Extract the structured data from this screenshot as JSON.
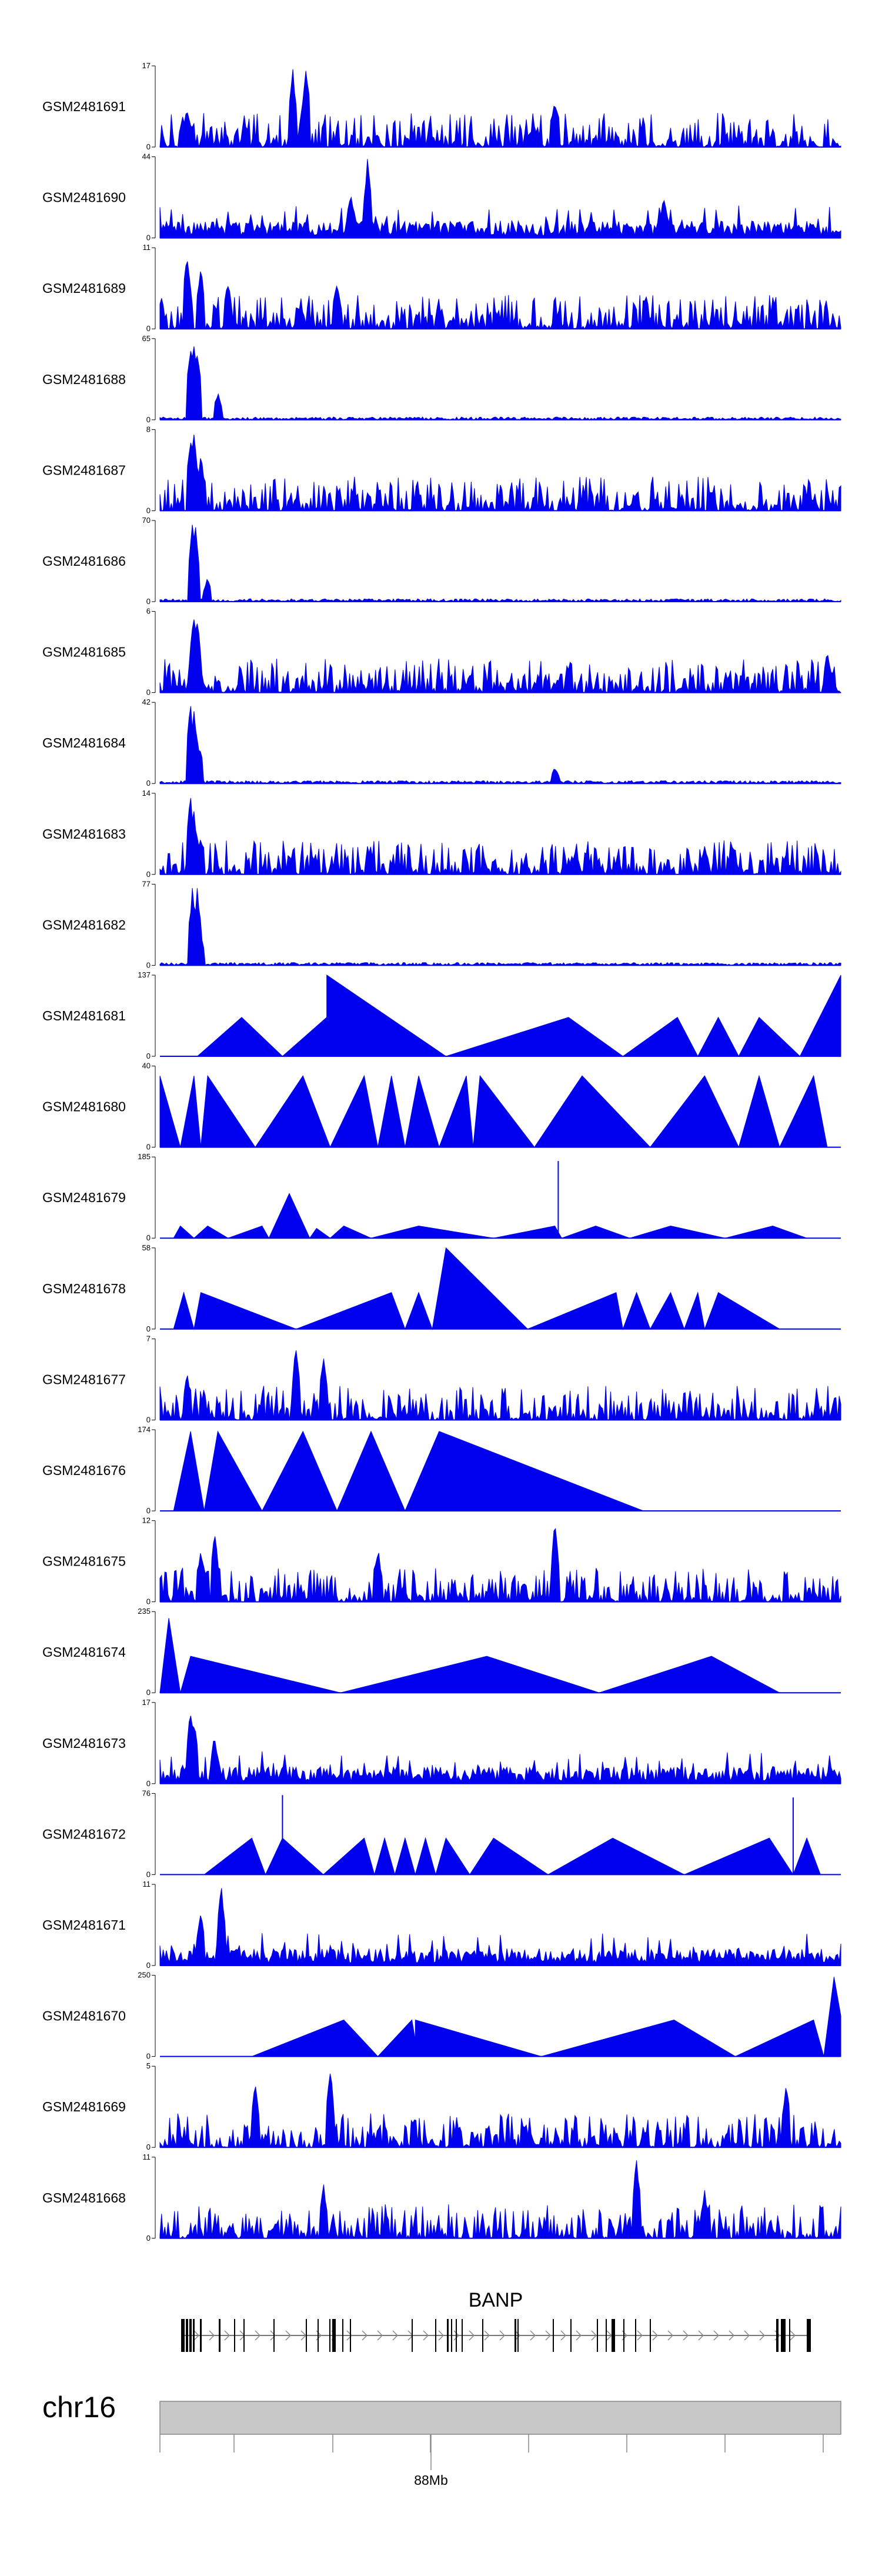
{
  "chart_data": {
    "type": "area",
    "title": "",
    "chromosome": "chr16",
    "xlabel": "",
    "axis_ticks": [
      {
        "label": "88Mb",
        "major": true
      }
    ],
    "gene": {
      "name": "BANP"
    },
    "series_color": "#0000EE",
    "tracks": [
      {
        "name": "GSM2481691",
        "ymin": "0",
        "ymax": "17",
        "pattern": "noise",
        "seed": 91,
        "peaks": [
          [
            0.195,
            1.0
          ],
          [
            0.215,
            1.0
          ],
          [
            0.58,
            0.6
          ],
          [
            0.04,
            0.5
          ]
        ]
      },
      {
        "name": "GSM2481690",
        "ymin": "0",
        "ymax": "44",
        "pattern": "noise-tri",
        "seed": 90,
        "peaks": [
          [
            0.305,
            1.0
          ],
          [
            0.28,
            0.6
          ],
          [
            0.74,
            0.5
          ]
        ]
      },
      {
        "name": "GSM2481689",
        "ymin": "0",
        "ymax": "11",
        "pattern": "noise",
        "seed": 89,
        "peaks": [
          [
            0.04,
            1.0
          ],
          [
            0.06,
            0.8
          ],
          [
            0.1,
            0.6
          ],
          [
            0.26,
            0.6
          ]
        ]
      },
      {
        "name": "GSM2481688",
        "ymin": "0",
        "ymax": "65",
        "pattern": "focal",
        "seed": 88,
        "peaks": [
          [
            0.045,
            1.0
          ],
          [
            0.05,
            0.95
          ],
          [
            0.055,
            0.9
          ],
          [
            0.085,
            0.35
          ]
        ]
      },
      {
        "name": "GSM2481687",
        "ymin": "0",
        "ymax": "8",
        "pattern": "noise",
        "seed": 87,
        "peaks": [
          [
            0.045,
            1.0
          ],
          [
            0.05,
            0.95
          ],
          [
            0.06,
            0.7
          ]
        ]
      },
      {
        "name": "GSM2481686",
        "ymin": "0",
        "ymax": "70",
        "pattern": "focal",
        "seed": 86,
        "peaks": [
          [
            0.048,
            1.0
          ],
          [
            0.052,
            0.95
          ],
          [
            0.07,
            0.3
          ]
        ]
      },
      {
        "name": "GSM2481685",
        "ymin": "0",
        "ymax": "6",
        "pattern": "noise",
        "seed": 85,
        "peaks": [
          [
            0.05,
            1.0
          ],
          [
            0.055,
            0.95
          ],
          [
            0.98,
            0.5
          ]
        ]
      },
      {
        "name": "GSM2481684",
        "ymin": "0",
        "ymax": "42",
        "pattern": "focal",
        "seed": 84,
        "peaks": [
          [
            0.045,
            1.0
          ],
          [
            0.05,
            0.95
          ],
          [
            0.058,
            0.5
          ],
          [
            0.58,
            0.2
          ]
        ]
      },
      {
        "name": "GSM2481683",
        "ymin": "0",
        "ymax": "14",
        "pattern": "noise",
        "seed": 83,
        "peaks": [
          [
            0.045,
            1.0
          ],
          [
            0.05,
            0.8
          ],
          [
            0.06,
            0.5
          ],
          [
            0.8,
            0.35
          ]
        ]
      },
      {
        "name": "GSM2481682",
        "ymin": "0",
        "ymax": "77",
        "pattern": "focal",
        "seed": 82,
        "peaks": [
          [
            0.048,
            1.0
          ],
          [
            0.055,
            1.0
          ],
          [
            0.06,
            0.4
          ]
        ]
      },
      {
        "name": "GSM2481681",
        "ymin": "0",
        "ymax": "137",
        "pattern": "tri",
        "points": [
          [
            0.055,
            0
          ],
          [
            0.12,
            0.48
          ],
          [
            0.18,
            0
          ],
          [
            0.245,
            0.48
          ],
          [
            0.245,
            1.0
          ],
          [
            0.42,
            0
          ],
          [
            0.6,
            0.48
          ],
          [
            0.68,
            0
          ],
          [
            0.76,
            0.48
          ],
          [
            0.79,
            0
          ],
          [
            0.82,
            0.48
          ],
          [
            0.85,
            0
          ],
          [
            0.88,
            0.48
          ],
          [
            0.94,
            0
          ],
          [
            1.0,
            1.0
          ]
        ]
      },
      {
        "name": "GSM2481680",
        "ymin": "0",
        "ymax": "40",
        "pattern": "tri",
        "points": [
          [
            0.0,
            0
          ],
          [
            0.0,
            0.88
          ],
          [
            0.03,
            0
          ],
          [
            0.05,
            0.88
          ],
          [
            0.06,
            0
          ],
          [
            0.07,
            0.88
          ],
          [
            0.14,
            0
          ],
          [
            0.21,
            0.88
          ],
          [
            0.25,
            0
          ],
          [
            0.3,
            0.88
          ],
          [
            0.32,
            0
          ],
          [
            0.34,
            0.88
          ],
          [
            0.36,
            0
          ],
          [
            0.38,
            0.88
          ],
          [
            0.41,
            0
          ],
          [
            0.45,
            0.88
          ],
          [
            0.46,
            0
          ],
          [
            0.47,
            0.88
          ],
          [
            0.55,
            0
          ],
          [
            0.62,
            0.88
          ],
          [
            0.72,
            0
          ],
          [
            0.8,
            0.88
          ],
          [
            0.85,
            0
          ],
          [
            0.88,
            0.88
          ],
          [
            0.91,
            0
          ],
          [
            0.96,
            0.88
          ],
          [
            0.98,
            0
          ]
        ]
      },
      {
        "name": "GSM2481679",
        "ymin": "0",
        "ymax": "185",
        "pattern": "tri-spiky",
        "points": [
          [
            0.02,
            0
          ],
          [
            0.03,
            0.15
          ],
          [
            0.05,
            0
          ],
          [
            0.07,
            0.15
          ],
          [
            0.1,
            0
          ],
          [
            0.15,
            0.15
          ],
          [
            0.16,
            0
          ],
          [
            0.19,
            0.55
          ],
          [
            0.22,
            0
          ],
          [
            0.23,
            0.12
          ],
          [
            0.25,
            0
          ],
          [
            0.27,
            0.15
          ],
          [
            0.31,
            0
          ],
          [
            0.38,
            0.15
          ],
          [
            0.49,
            0
          ],
          [
            0.58,
            0.15
          ],
          [
            0.59,
            0
          ],
          [
            0.64,
            0.15
          ],
          [
            0.69,
            0
          ],
          [
            0.75,
            0.15
          ],
          [
            0.83,
            0
          ],
          [
            0.9,
            0.15
          ],
          [
            0.95,
            0
          ]
        ],
        "spikes": [
          [
            0.585,
            0.95
          ],
          [
            0.19,
            0.5
          ]
        ]
      },
      {
        "name": "GSM2481678",
        "ymin": "0",
        "ymax": "58",
        "pattern": "tri",
        "points": [
          [
            0.02,
            0
          ],
          [
            0.035,
            0.45
          ],
          [
            0.05,
            0
          ],
          [
            0.06,
            0.45
          ],
          [
            0.2,
            0
          ],
          [
            0.34,
            0.45
          ],
          [
            0.36,
            0
          ],
          [
            0.38,
            0.45
          ],
          [
            0.4,
            0
          ],
          [
            0.42,
            1.0
          ],
          [
            0.54,
            0
          ],
          [
            0.67,
            0.45
          ],
          [
            0.68,
            0
          ],
          [
            0.7,
            0.45
          ],
          [
            0.72,
            0
          ],
          [
            0.75,
            0.45
          ],
          [
            0.77,
            0
          ],
          [
            0.79,
            0.45
          ],
          [
            0.8,
            0
          ],
          [
            0.82,
            0.45
          ],
          [
            0.91,
            0
          ]
        ]
      },
      {
        "name": "GSM2481677",
        "ymin": "0",
        "ymax": "7",
        "pattern": "noise",
        "seed": 77,
        "peaks": [
          [
            0.2,
            1.0
          ],
          [
            0.24,
            0.8
          ],
          [
            0.04,
            0.6
          ]
        ]
      },
      {
        "name": "GSM2481676",
        "ymin": "0",
        "ymax": "174",
        "pattern": "tri",
        "points": [
          [
            0.02,
            0
          ],
          [
            0.045,
            0.98
          ],
          [
            0.065,
            0
          ],
          [
            0.085,
            0.98
          ],
          [
            0.15,
            0
          ],
          [
            0.21,
            0.98
          ],
          [
            0.26,
            0
          ],
          [
            0.31,
            0.98
          ],
          [
            0.36,
            0
          ],
          [
            0.41,
            0.98
          ],
          [
            0.71,
            0
          ]
        ]
      },
      {
        "name": "GSM2481675",
        "ymin": "0",
        "ymax": "12",
        "pattern": "noise",
        "seed": 75,
        "peaks": [
          [
            0.58,
            1.0
          ],
          [
            0.32,
            0.7
          ],
          [
            0.06,
            0.7
          ],
          [
            0.08,
            0.9
          ]
        ]
      },
      {
        "name": "GSM2481674",
        "ymin": "0",
        "ymax": "235",
        "pattern": "tri",
        "points": [
          [
            0.0,
            0
          ],
          [
            0.013,
            0.92
          ],
          [
            0.03,
            0
          ],
          [
            0.045,
            0.45
          ],
          [
            0.265,
            0
          ],
          [
            0.48,
            0.45
          ],
          [
            0.645,
            0
          ],
          [
            0.81,
            0.45
          ],
          [
            0.91,
            0
          ]
        ]
      },
      {
        "name": "GSM2481673",
        "ymin": "0",
        "ymax": "17",
        "pattern": "noise-tri",
        "seed": 73,
        "peaks": [
          [
            0.045,
            1.0
          ],
          [
            0.05,
            0.8
          ],
          [
            0.08,
            0.6
          ]
        ]
      },
      {
        "name": "GSM2481672",
        "ymin": "0",
        "ymax": "76",
        "pattern": "tri-spiky",
        "points": [
          [
            0.065,
            0
          ],
          [
            0.135,
            0.45
          ],
          [
            0.155,
            0
          ],
          [
            0.18,
            0.45
          ],
          [
            0.24,
            0
          ],
          [
            0.3,
            0.45
          ],
          [
            0.315,
            0
          ],
          [
            0.33,
            0.45
          ],
          [
            0.345,
            0
          ],
          [
            0.36,
            0.45
          ],
          [
            0.375,
            0
          ],
          [
            0.39,
            0.45
          ],
          [
            0.405,
            0
          ],
          [
            0.42,
            0.45
          ],
          [
            0.455,
            0
          ],
          [
            0.49,
            0.45
          ],
          [
            0.57,
            0
          ],
          [
            0.665,
            0.45
          ],
          [
            0.77,
            0
          ],
          [
            0.895,
            0.45
          ],
          [
            0.93,
            0
          ],
          [
            0.95,
            0.45
          ],
          [
            0.97,
            0
          ]
        ],
        "spikes": [
          [
            0.18,
            0.98
          ],
          [
            0.93,
            0.95
          ]
        ]
      },
      {
        "name": "GSM2481671",
        "ymin": "0",
        "ymax": "11",
        "pattern": "noise-tri",
        "seed": 71,
        "peaks": [
          [
            0.09,
            1.0
          ],
          [
            0.06,
            0.7
          ]
        ]
      },
      {
        "name": "GSM2481670",
        "ymin": "0",
        "ymax": "250",
        "pattern": "tri",
        "points": [
          [
            0.135,
            0
          ],
          [
            0.27,
            0.45
          ],
          [
            0.32,
            0
          ],
          [
            0.37,
            0.45
          ],
          [
            0.375,
            0.2
          ],
          [
            0.375,
            0.45
          ],
          [
            0.56,
            0
          ],
          [
            0.755,
            0.45
          ],
          [
            0.845,
            0
          ],
          [
            0.96,
            0.45
          ],
          [
            0.975,
            0
          ],
          [
            0.99,
            0.98
          ],
          [
            1.0,
            0.5
          ],
          [
            1.0,
            0
          ]
        ]
      },
      {
        "name": "GSM2481669",
        "ymin": "0",
        "ymax": "5",
        "pattern": "noise",
        "seed": 69,
        "peaks": [
          [
            0.25,
            1.0
          ],
          [
            0.14,
            0.8
          ],
          [
            0.92,
            0.8
          ]
        ]
      },
      {
        "name": "GSM2481668",
        "ymin": "0",
        "ymax": "11",
        "pattern": "noise",
        "seed": 68,
        "peaks": [
          [
            0.7,
            1.0
          ],
          [
            0.24,
            0.7
          ],
          [
            0.8,
            0.6
          ]
        ]
      }
    ]
  }
}
